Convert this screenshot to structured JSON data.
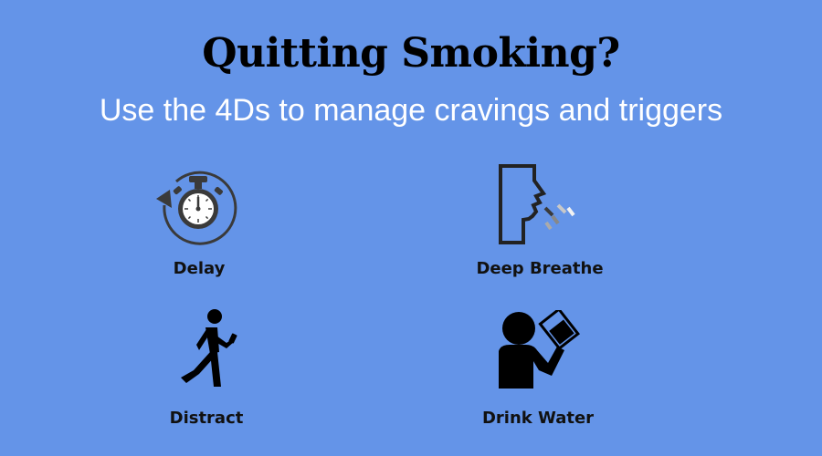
{
  "title": "Quitting Smoking?",
  "subtitle": "Use the 4Ds to manage cravings and triggers",
  "items": [
    {
      "label": "Delay",
      "icon": "stopwatch-icon"
    },
    {
      "label": "Deep Breathe",
      "icon": "breathing-face-icon"
    },
    {
      "label": "Distract",
      "icon": "person-walking-phone-icon"
    },
    {
      "label": "Drink Water",
      "icon": "person-drinking-icon"
    }
  ],
  "colors": {
    "background": "#6494e8",
    "title": "#000000",
    "subtitle": "#ffffff"
  }
}
